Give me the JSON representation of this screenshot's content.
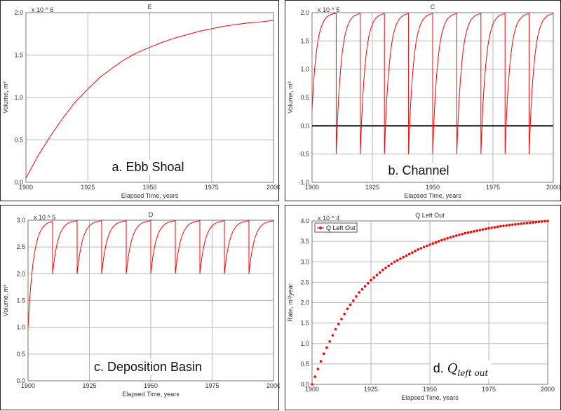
{
  "chart_data": [
    {
      "type": "line",
      "title": "E",
      "xlabel": "Elapsed Time, years",
      "ylabel": "Volume, m³",
      "multiplier": "x 10 ^ 6",
      "caption": "a. Ebb Shoal",
      "xlim": [
        1900,
        2000
      ],
      "ylim": [
        0,
        2.0
      ],
      "xticks": [
        "1900",
        "1925",
        "1950",
        "1975",
        "2000"
      ],
      "yticks": [
        "0.0",
        "0.5",
        "1.0",
        "1.5",
        "2.0"
      ],
      "xtick_values": [
        1900,
        1925,
        1950,
        1975,
        2000
      ],
      "ytick_values": [
        0,
        0.5,
        1.0,
        1.5,
        2.0
      ],
      "series": [
        {
          "color": "#ff0000",
          "x": [
            1900,
            1905,
            1910,
            1915,
            1920,
            1925,
            1930,
            1935,
            1940,
            1945,
            1950,
            1955,
            1960,
            1965,
            1970,
            1975,
            1980,
            1985,
            1990,
            1995,
            2000
          ],
          "y": [
            0.05,
            0.32,
            0.55,
            0.76,
            0.95,
            1.1,
            1.24,
            1.35,
            1.45,
            1.53,
            1.59,
            1.65,
            1.7,
            1.74,
            1.78,
            1.81,
            1.84,
            1.86,
            1.88,
            1.89,
            1.91
          ]
        }
      ]
    },
    {
      "type": "line",
      "title": "C",
      "xlabel": "Elapsed Time, years",
      "ylabel": "Volume, m³",
      "multiplier": "x 10 ^ 5",
      "caption": "b. Channel",
      "xlim": [
        1900,
        2000
      ],
      "ylim": [
        -1.0,
        2.0
      ],
      "xticks": [
        "1900",
        "1925",
        "1950",
        "1975",
        "2000"
      ],
      "yticks": [
        "-1.0",
        "-0.5",
        "0.0",
        "0.5",
        "1.0",
        "1.5",
        "2.0"
      ],
      "xtick_values": [
        1900,
        1925,
        1950,
        1975,
        2000
      ],
      "ytick_values": [
        -1.0,
        -0.5,
        0,
        0.5,
        1.0,
        1.5,
        2.0
      ],
      "zero_line": 0,
      "series": [
        {
          "color": "#ff0000",
          "pattern": {
            "type": "periodic-recovery",
            "start": 1900,
            "end": 2000,
            "drop_years": [
              1910,
              1920,
              1930,
              1940,
              1950,
              1960,
              1970,
              1980,
              1990
            ],
            "start_value": 0.3,
            "drop_value": -0.5,
            "max_value": 2.0,
            "rate": 0.5
          }
        }
      ]
    },
    {
      "type": "line",
      "title": "D",
      "xlabel": "Elapsed Time, years",
      "ylabel": "Volume, m³",
      "multiplier": "x 10 ^ 5",
      "caption": "c. Deposition Basin",
      "xlim": [
        1900,
        2000
      ],
      "ylim": [
        0,
        3.0
      ],
      "xticks": [
        "1900",
        "1925",
        "1950",
        "1975",
        "2000"
      ],
      "yticks": [
        "0.0",
        "0.5",
        "1.0",
        "1.5",
        "2.0",
        "2.5",
        "3.0"
      ],
      "xtick_values": [
        1900,
        1925,
        1950,
        1975,
        2000
      ],
      "ytick_values": [
        0,
        0.5,
        1.0,
        1.5,
        2.0,
        2.5,
        3.0
      ],
      "series": [
        {
          "color": "#ff0000",
          "pattern": {
            "type": "periodic-recovery",
            "start": 1900,
            "end": 2000,
            "drop_years": [
              1910,
              1920,
              1930,
              1940,
              1950,
              1960,
              1970,
              1980,
              1990
            ],
            "start_value": 1.0,
            "drop_value": 2.0,
            "max_value": 3.0,
            "rate": 0.45
          }
        }
      ]
    },
    {
      "type": "scatter",
      "title": "Q Left Out",
      "xlabel": "Elapsed Time, years",
      "ylabel": "Rate, m³/year",
      "multiplier": "x 10 ^ 4",
      "caption_prefix": "d. ",
      "caption_symbol": "Q",
      "caption_sub": "left out",
      "xlim": [
        1900,
        2000
      ],
      "ylim": [
        0,
        4.0
      ],
      "xticks": [
        "1900",
        "1925",
        "1950",
        "1975",
        "2000"
      ],
      "yticks": [
        "0.0",
        "0.5",
        "1.0",
        "1.5",
        "2.0",
        "2.5",
        "3.0",
        "3.5",
        "4.0"
      ],
      "xtick_values": [
        1900,
        1925,
        1950,
        1975,
        2000
      ],
      "ytick_values": [
        0,
        0.5,
        1.0,
        1.5,
        2.0,
        2.5,
        3.0,
        3.5,
        4.0
      ],
      "legend": "top-left",
      "series": [
        {
          "name": "Q Left Out",
          "color": "#ff0000",
          "x": [
            1900,
            1905,
            1910,
            1915,
            1920,
            1925,
            1930,
            1935,
            1940,
            1945,
            1950,
            1955,
            1960,
            1965,
            1970,
            1975,
            1980,
            1985,
            1990,
            1995,
            2000
          ],
          "y": [
            0.0,
            0.75,
            1.35,
            1.85,
            2.25,
            2.55,
            2.8,
            3.0,
            3.15,
            3.3,
            3.42,
            3.53,
            3.62,
            3.7,
            3.76,
            3.82,
            3.87,
            3.91,
            3.94,
            3.97,
            4.0
          ]
        }
      ]
    }
  ]
}
